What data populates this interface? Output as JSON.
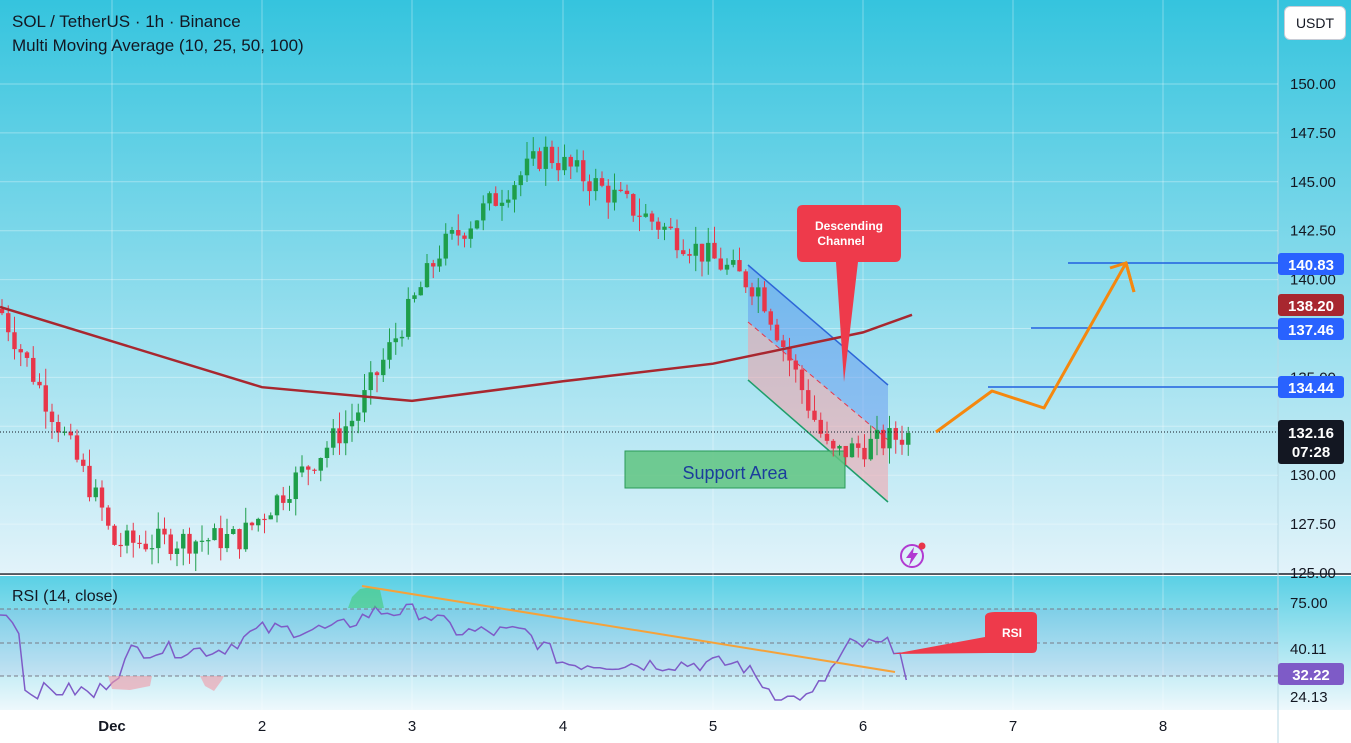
{
  "header": {
    "title": "SOL / TetherUS · 1h · Binance",
    "indicator": "Multi Moving Average (10, 25, 50, 100)",
    "currency": "USDT"
  },
  "rsi_panel": {
    "label": "RSI (14, close)",
    "callout": "RSI"
  },
  "annotations": {
    "descending_channel": [
      "Descending",
      "Channel"
    ],
    "support_area": "Support Area"
  },
  "price_tags": {
    "target_1": "140.83",
    "ma_value": "138.20",
    "target_2": "137.46",
    "target_3": "134.44",
    "last_price": "132.16",
    "countdown": "07:28",
    "rsi_upper_tick": "75.00",
    "rsi_mid": "40.11",
    "rsi_current": "32.22",
    "rsi_low": "24.13"
  },
  "colors": {
    "panel_top": "#35c4de",
    "panel_bottom": "#e2f3fa",
    "up_candle": "#1e9e4a",
    "down_candle": "#e8364a",
    "moving_average": "#a8272f",
    "target_lines": "#2160e0",
    "projection": "#f5880f",
    "rsi_line": "#7e5bc7",
    "rsi_trendline": "#f5a23a",
    "callout": "#ee3a4b"
  },
  "chart_data": {
    "type": "candlestick",
    "y_axis": {
      "ticks": [
        125,
        127.5,
        130,
        132.5,
        135,
        137.5,
        140,
        142.5,
        145,
        147.5,
        150
      ],
      "range": [
        125,
        152
      ]
    },
    "x_axis": {
      "ticks": [
        "Dec",
        "2",
        "3",
        "4",
        "5",
        "6",
        "7",
        "8"
      ]
    },
    "rsi_axis": {
      "ticks": [
        "75.00",
        "40.11",
        "32.22",
        "24.13"
      ],
      "range": [
        10,
        100
      ],
      "levels": [
        70,
        50,
        30
      ]
    },
    "key_points": [
      {
        "x": "Nov 30",
        "price": 138.5
      },
      {
        "x": "Dec 1",
        "price": 128.0
      },
      {
        "x": "Dec 1",
        "price": 126.5
      },
      {
        "x": "Dec 2",
        "price": 126.8
      },
      {
        "x": "Dec 2",
        "price": 133.0
      },
      {
        "x": "Dec 3",
        "price": 141.5
      },
      {
        "x": "Dec 4",
        "price": 146.5
      },
      {
        "x": "Dec 5",
        "price": 139.5
      },
      {
        "x": "Dec 6",
        "price": 131.0
      },
      {
        "x": "Dec 6",
        "price": 132.16
      }
    ],
    "moving_average_points": [
      {
        "x": "Nov 30",
        "price": 138.6
      },
      {
        "x": "Dec 2",
        "price": 134.5
      },
      {
        "x": "Dec 3",
        "price": 133.8
      },
      {
        "x": "Dec 4",
        "price": 134.8
      },
      {
        "x": "Dec 5",
        "price": 135.7
      },
      {
        "x": "Dec 6",
        "price": 137.3
      },
      {
        "x": "Dec 6",
        "price": 138.2
      }
    ],
    "levels": [
      140.83,
      137.46,
      134.44
    ],
    "last_price": 132.16,
    "support_zone": [
      130.3,
      131.7
    ],
    "projection_path": [
      {
        "x": "Dec 6",
        "price": 132.16
      },
      {
        "x": "Dec 6",
        "price": 134.44
      },
      {
        "x": "Dec 7",
        "price": 133.5
      },
      {
        "x": "Dec 7",
        "price": 140.83
      },
      {
        "x": "Dec 7",
        "price": 140.0
      }
    ]
  }
}
